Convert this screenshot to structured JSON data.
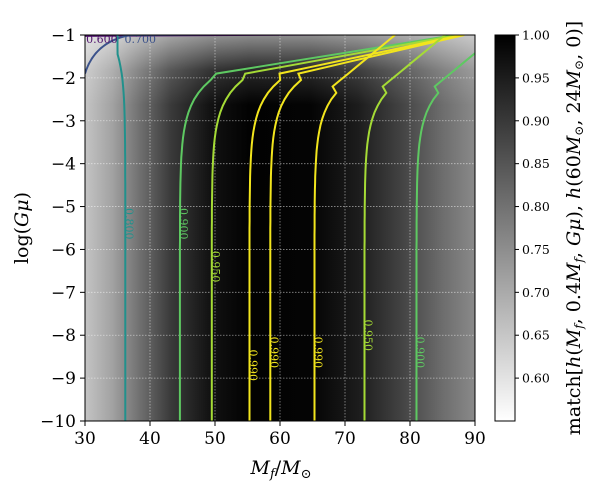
{
  "chart_data": {
    "type": "heatmap",
    "title": "",
    "xlabel": "M_f / M_⊙",
    "ylabel": "log(Gμ)",
    "colorbar_label": "match[h(M_f, 0.4M_f, Gμ), h(60M_⊙, 24M_⊙, 0)]",
    "xlim": [
      30,
      90
    ],
    "ylim": [
      -10,
      -1
    ],
    "x_ticks": [
      "30",
      "40",
      "50",
      "60",
      "70",
      "80",
      "90"
    ],
    "y_ticks": [
      "−10",
      "−9",
      "−8",
      "−7",
      "−6",
      "−5",
      "−4",
      "−3",
      "−2",
      "−1"
    ],
    "colorbar_range": [
      0.55,
      1.0
    ],
    "colorbar_ticks": [
      "0.60",
      "0.65",
      "0.70",
      "0.75",
      "0.80",
      "0.85",
      "0.90",
      "0.95",
      "1.00"
    ],
    "colormap": "greys (white = low match, black = high match)",
    "grid": true,
    "peak_match_at": {
      "x": 60,
      "y_max": -2.5
    },
    "contours": [
      {
        "level": 0.6,
        "label": "0.600",
        "color": "#50136d",
        "x_at_low_Gμ": null
      },
      {
        "level": 0.7,
        "label": "0.700",
        "color": "#3b528b",
        "x_at_low_Gμ": null
      },
      {
        "level": 0.8,
        "label": "0.800",
        "color": "#21918c",
        "x_at_low_Gμ": 36.2
      },
      {
        "level": 0.9,
        "label": "0.900",
        "color": "#5ec962",
        "x_at_low_Gμ": 44.6
      },
      {
        "level": 0.95,
        "label": "0.950",
        "color": "#a5db36",
        "x_at_low_Gμ": 49.5
      },
      {
        "level": 0.99,
        "label": "0.990",
        "color": "#f2e51d",
        "x_at_low_Gμ": 55.3
      },
      {
        "level": 0.99,
        "label": "0.990",
        "color": "#f2e51d",
        "x_at_low_Gμ": 58.5
      },
      {
        "level": 0.99,
        "label": "0.990",
        "color": "#f2e51d",
        "x_at_low_Gμ": 65.3
      },
      {
        "level": 0.95,
        "label": "0.950",
        "color": "#a5db36",
        "x_at_low_Gμ": 73.0
      },
      {
        "level": 0.9,
        "label": "0.900",
        "color": "#5ec962",
        "x_at_low_Gμ": 81.0
      }
    ]
  }
}
